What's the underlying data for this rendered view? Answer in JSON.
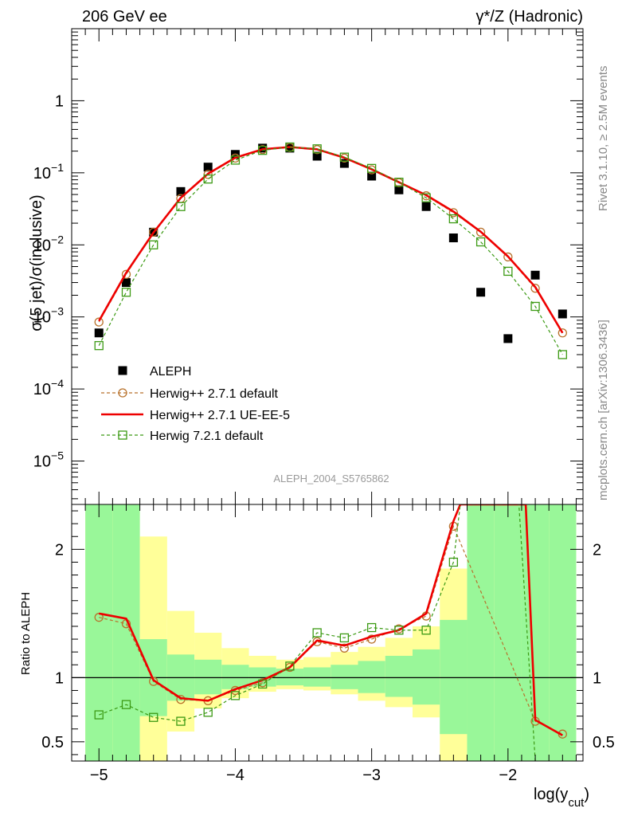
{
  "header": {
    "left": "206 GeV ee",
    "right": "γ*/Z (Hadronic)"
  },
  "side_labels": {
    "rivet": "Rivet 3.1.10, ≥ 2.5M events",
    "mcplots": "mcplots.cern.ch [arXiv:1306.3436]"
  },
  "analysis_label": "ALEPH_2004_S5765862",
  "colors": {
    "aleph": "#000000",
    "herwig271_default": "#b8722c",
    "herwig271_ueee5": "#ee0000",
    "herwig721_default": "#3c9a14",
    "band_inner": "#99f799",
    "band_outer": "#ffff99"
  },
  "chart_data": [
    {
      "type": "scatter",
      "name": "main",
      "ylabel": "σ(5 jet)/σ(inclusive)",
      "xlabel": "log(y_cut)",
      "yscale": "log",
      "xlim": [
        -5.2,
        -1.45
      ],
      "ylim": [
        2.5e-06,
        10
      ],
      "y_ticks": [
        {
          "value": 1e-05,
          "label": "10^-5"
        },
        {
          "value": 0.0001,
          "label": "10^-4"
        },
        {
          "value": 0.001,
          "label": "10^-3"
        },
        {
          "value": 0.01,
          "label": "10^-2"
        },
        {
          "value": 0.1,
          "label": "10^-1"
        },
        {
          "value": 1,
          "label": "1"
        }
      ],
      "legend": [
        "ALEPH",
        "Herwig++ 2.7.1 default",
        "Herwig++ 2.7.1 UE-EE-5",
        "Herwig 7.2.1 default"
      ],
      "series": [
        {
          "name": "ALEPH",
          "style": "square-filled",
          "x": [
            -5.0,
            -4.8,
            -4.6,
            -4.4,
            -4.2,
            -4.0,
            -3.8,
            -3.6,
            -3.4,
            -3.2,
            -3.0,
            -2.8,
            -2.6,
            -2.4,
            -2.2,
            -2.0,
            -1.8,
            -1.6
          ],
          "y": [
            0.0006,
            0.003,
            0.015,
            0.055,
            0.12,
            0.18,
            0.22,
            0.22,
            0.17,
            0.135,
            0.09,
            0.058,
            0.034,
            0.0125,
            0.0022,
            0.0005,
            0.0038,
            0.0011
          ]
        },
        {
          "name": "Herwig++ 2.7.1 default",
          "style": "circle-open-dashed",
          "x": [
            -5.0,
            -4.8,
            -4.6,
            -4.4,
            -4.2,
            -4.0,
            -3.8,
            -3.6,
            -3.4,
            -3.2,
            -3.0,
            -2.8,
            -2.6,
            -2.4,
            -2.2,
            -2.0,
            -1.8,
            -1.6
          ],
          "y": [
            0.00085,
            0.0039,
            0.015,
            0.044,
            0.095,
            0.16,
            0.21,
            0.225,
            0.21,
            0.16,
            0.11,
            0.073,
            0.048,
            0.028,
            0.015,
            0.0068,
            0.0025,
            0.0006
          ]
        },
        {
          "name": "Herwig++ 2.7.1 UE-EE-5",
          "style": "line-solid",
          "x": [
            -5.0,
            -4.8,
            -4.6,
            -4.4,
            -4.2,
            -4.0,
            -3.8,
            -3.6,
            -3.4,
            -3.2,
            -3.0,
            -2.8,
            -2.6,
            -2.4,
            -2.2,
            -2.0,
            -1.8,
            -1.6
          ],
          "y": [
            0.00088,
            0.0041,
            0.0148,
            0.045,
            0.097,
            0.162,
            0.212,
            0.228,
            0.212,
            0.162,
            0.112,
            0.074,
            0.049,
            0.029,
            0.0152,
            0.0069,
            0.0026,
            0.0006
          ]
        },
        {
          "name": "Herwig 7.2.1 default",
          "style": "square-open-dashed",
          "x": [
            -5.0,
            -4.8,
            -4.6,
            -4.4,
            -4.2,
            -4.0,
            -3.8,
            -3.6,
            -3.4,
            -3.2,
            -3.0,
            -2.8,
            -2.6,
            -2.4,
            -2.2,
            -2.0,
            -1.8,
            -1.6
          ],
          "y": [
            0.0004,
            0.0022,
            0.01,
            0.034,
            0.082,
            0.15,
            0.205,
            0.228,
            0.215,
            0.165,
            0.115,
            0.074,
            0.045,
            0.023,
            0.011,
            0.0043,
            0.0014,
            0.0003
          ]
        }
      ]
    },
    {
      "type": "line",
      "name": "ratio",
      "ylabel": "Ratio to ALEPH",
      "xlabel": "log(y_cut)",
      "xlim": [
        -5.2,
        -1.45
      ],
      "ylim": [
        0.35,
        2.35
      ],
      "x_ticks": [
        {
          "value": -5,
          "label": "−5"
        },
        {
          "value": -4,
          "label": "−4"
        },
        {
          "value": -3,
          "label": "−3"
        },
        {
          "value": -2,
          "label": "−2"
        }
      ],
      "y_ticks": [
        {
          "value": 0.5,
          "label": "0.5"
        },
        {
          "value": 1,
          "label": "1"
        },
        {
          "value": 2,
          "label": "2"
        }
      ],
      "bands": {
        "edges": [
          -5.1,
          -4.9,
          -4.7,
          -4.5,
          -4.3,
          -4.1,
          -3.9,
          -3.7,
          -3.5,
          -3.3,
          -3.1,
          -2.9,
          -2.7,
          -2.5,
          -2.3,
          -2.1,
          -1.9,
          -1.7,
          -1.5
        ],
        "inner_low": [
          0.35,
          0.35,
          0.7,
          0.82,
          0.87,
          0.91,
          0.93,
          0.94,
          0.93,
          0.91,
          0.88,
          0.85,
          0.79,
          0.56,
          0.35,
          0.35,
          0.35,
          0.35
        ],
        "inner_high": [
          2.35,
          2.35,
          1.3,
          1.18,
          1.14,
          1.1,
          1.08,
          1.07,
          1.08,
          1.1,
          1.13,
          1.17,
          1.22,
          1.45,
          2.35,
          2.35,
          2.35,
          2.35
        ],
        "outer_low": [
          0.35,
          0.35,
          0.35,
          0.58,
          0.76,
          0.84,
          0.89,
          0.91,
          0.9,
          0.87,
          0.82,
          0.77,
          0.69,
          0.35,
          0.35,
          0.35,
          0.35,
          0.35
        ],
        "outer_high": [
          2.35,
          2.35,
          2.1,
          1.52,
          1.35,
          1.23,
          1.17,
          1.14,
          1.16,
          1.2,
          1.24,
          1.31,
          1.4,
          1.85,
          2.35,
          2.35,
          2.35,
          2.35
        ]
      },
      "series": [
        {
          "name": "Herwig++ 2.7.1 default",
          "style": "circle-open-dashed",
          "x": [
            -5.0,
            -4.8,
            -4.6,
            -4.4,
            -4.2,
            -4.0,
            -3.8,
            -3.6,
            -3.4,
            -3.2,
            -3.0,
            -2.8,
            -2.6,
            -2.4,
            -1.8,
            -1.6
          ],
          "y": [
            1.47,
            1.42,
            0.97,
            0.83,
            0.82,
            0.9,
            0.96,
            1.08,
            1.28,
            1.23,
            1.3,
            1.38,
            1.48,
            2.18,
            0.66,
            0.56
          ]
        },
        {
          "name": "Herwig++ 2.7.1 UE-EE-5",
          "style": "line-solid",
          "x": [
            -5.0,
            -4.8,
            -4.6,
            -4.4,
            -4.2,
            -4.0,
            -3.8,
            -3.6,
            -3.4,
            -3.2,
            -3.0,
            -2.8,
            -2.6,
            -2.4,
            -2.35,
            -1.87,
            -1.8,
            -1.6
          ],
          "y": [
            1.5,
            1.46,
            0.98,
            0.84,
            0.82,
            0.91,
            0.98,
            1.08,
            1.29,
            1.25,
            1.32,
            1.37,
            1.5,
            2.22,
            2.35,
            2.35,
            0.67,
            0.55
          ]
        },
        {
          "name": "Herwig 7.2.1 default",
          "style": "square-open-dashed",
          "x": [
            -5.0,
            -4.8,
            -4.6,
            -4.4,
            -4.2,
            -4.0,
            -3.8,
            -3.6,
            -3.4,
            -3.2,
            -3.0,
            -2.8,
            -2.6,
            -2.4,
            -2.35,
            -1.92,
            -1.8
          ],
          "y": [
            0.71,
            0.79,
            0.69,
            0.66,
            0.73,
            0.86,
            0.95,
            1.09,
            1.35,
            1.31,
            1.39,
            1.37,
            1.37,
            1.9,
            2.35,
            2.35,
            0.35
          ]
        }
      ]
    }
  ]
}
